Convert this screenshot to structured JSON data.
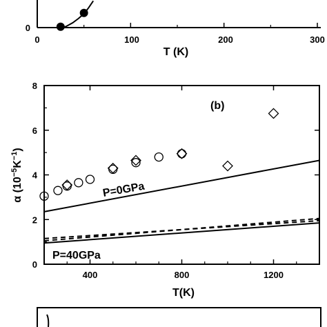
{
  "chart_data": [
    {
      "id": "top",
      "type": "scatter",
      "partial": true,
      "xlabel": "T (K)",
      "ylabel": "",
      "xlim": [
        0,
        300
      ],
      "ylim": [
        0,
        2
      ],
      "x_ticks": [
        "0",
        "100",
        "200",
        "300"
      ],
      "y_ticks": [
        "0"
      ],
      "series": [
        {
          "marker": "filled-circle",
          "x": [
            25,
            50
          ],
          "y": [
            0.05,
            0.85
          ]
        },
        {
          "style": "solid-line",
          "x": [
            28,
            32,
            38,
            44,
            50,
            55,
            60
          ],
          "y": [
            0.0,
            0.1,
            0.28,
            0.52,
            0.8,
            1.15,
            1.55
          ]
        }
      ]
    },
    {
      "id": "b",
      "type": "scatter",
      "panel_label": "(b)",
      "xlabel": "T(K)",
      "ylabel": "α (10⁻⁵K⁻¹)",
      "xlim": [
        200,
        1400
      ],
      "ylim": [
        0,
        8
      ],
      "x_ticks": [
        400,
        800,
        1200
      ],
      "y_ticks": [
        0,
        2,
        4,
        6,
        8
      ],
      "series": [
        {
          "marker": "open-circle",
          "x": [
            200,
            260,
            300,
            350,
            400,
            500,
            600,
            700,
            800
          ],
          "y": [
            3.05,
            3.3,
            3.5,
            3.65,
            3.8,
            4.25,
            4.55,
            4.8,
            4.95
          ]
        },
        {
          "marker": "open-diamond",
          "x": [
            300,
            500,
            600,
            800,
            1000,
            1200
          ],
          "y": [
            3.55,
            4.3,
            4.65,
            4.95,
            4.4,
            6.75
          ]
        },
        {
          "style": "solid",
          "x": [
            200,
            1400
          ],
          "y": [
            2.35,
            4.65
          ]
        },
        {
          "style": "solid",
          "x": [
            200,
            1400
          ],
          "y": [
            0.95,
            1.85
          ]
        },
        {
          "style": "dashed",
          "x": [
            200,
            1400
          ],
          "y": [
            1.05,
            2.05
          ]
        },
        {
          "style": "dashed",
          "x": [
            200,
            1400
          ],
          "y": [
            1.15,
            1.95
          ]
        }
      ],
      "annotations": [
        "P=0GPa",
        "P=40GPa"
      ]
    }
  ]
}
